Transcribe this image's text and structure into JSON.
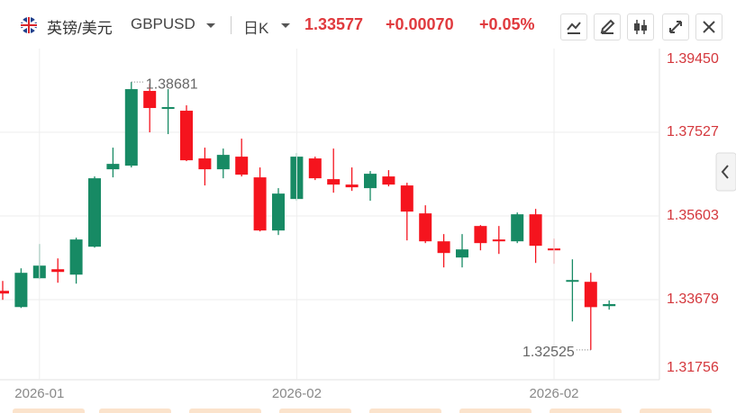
{
  "header": {
    "pair_name": "英镑/美元",
    "symbol": "GBPUSD",
    "period": "日K",
    "price": "1.33577",
    "change": "+0.00070",
    "change_percent": "+0.05%"
  },
  "chart_data": {
    "type": "candlestick",
    "categories": [
      null,
      null,
      "2026-01",
      null,
      null,
      null,
      null,
      null,
      null,
      null,
      null,
      null,
      null,
      null,
      null,
      null,
      "2026-02",
      null,
      null,
      null,
      null,
      null,
      null,
      null,
      null,
      null,
      null,
      null,
      null,
      null,
      "2026-02",
      null,
      null,
      null
    ],
    "open": [
      1.33882,
      1.33509,
      1.34171,
      1.34378,
      1.34254,
      1.34896,
      1.36676,
      1.36759,
      1.38477,
      1.38063,
      1.38022,
      1.36925,
      1.36676,
      1.36966,
      1.3649,
      1.35269,
      1.35993,
      1.36925,
      1.36449,
      1.36324,
      1.36242,
      1.36511,
      1.36304,
      1.35662,
      1.3502,
      1.34648,
      1.35372,
      1.35062,
      1.3502,
      1.35641,
      1.34855,
      1.34089,
      1.34089,
      1.3353
    ],
    "high": [
      1.34109,
      1.34399,
      1.34958,
      1.34627,
      1.35103,
      1.36511,
      1.37173,
      1.38681,
      1.38643,
      1.38518,
      1.38146,
      1.37173,
      1.37152,
      1.3738,
      1.36718,
      1.36242,
      1.37049,
      1.36966,
      1.37152,
      1.36718,
      1.36635,
      1.36656,
      1.36366,
      1.35848,
      1.35186,
      1.35186,
      1.35393,
      1.35372,
      1.35683,
      1.35765,
      1.35083,
      1.34606,
      1.34296,
      1.3366
    ],
    "low": [
      1.33675,
      1.33488,
      1.34151,
      1.34068,
      1.34047,
      1.34875,
      1.3649,
      1.36718,
      1.37525,
      1.37484,
      1.36863,
      1.36304,
      1.36469,
      1.36511,
      1.35248,
      1.35165,
      1.35952,
      1.36428,
      1.36138,
      1.36179,
      1.35952,
      1.36283,
      1.35041,
      1.34979,
      1.3442,
      1.3442,
      1.34813,
      1.3473,
      1.34979,
      1.34523,
      1.34503,
      1.33178,
      1.32525,
      1.3345
    ],
    "close": [
      1.3382,
      1.34296,
      1.34461,
      1.34316,
      1.35062,
      1.36469,
      1.368,
      1.38518,
      1.38084,
      1.38105,
      1.36883,
      1.36676,
      1.37007,
      1.36552,
      1.35269,
      1.36117,
      1.36966,
      1.36469,
      1.36324,
      1.36262,
      1.36573,
      1.36324,
      1.35703,
      1.3502,
      1.34751,
      1.34834,
      1.34979,
      1.3502,
      1.35641,
      1.34917,
      1.34813,
      1.3413,
      1.33507,
      1.33577
    ],
    "up_color": "#178a64",
    "down_color": "#f5141e",
    "ylim": [
      1.31756,
      1.3945
    ],
    "yticks": [
      {
        "value": 1.3945,
        "label": "1.39450"
      },
      1.37527,
      1.35603,
      1.33679,
      1.31756
    ],
    "grid": true
  }
}
